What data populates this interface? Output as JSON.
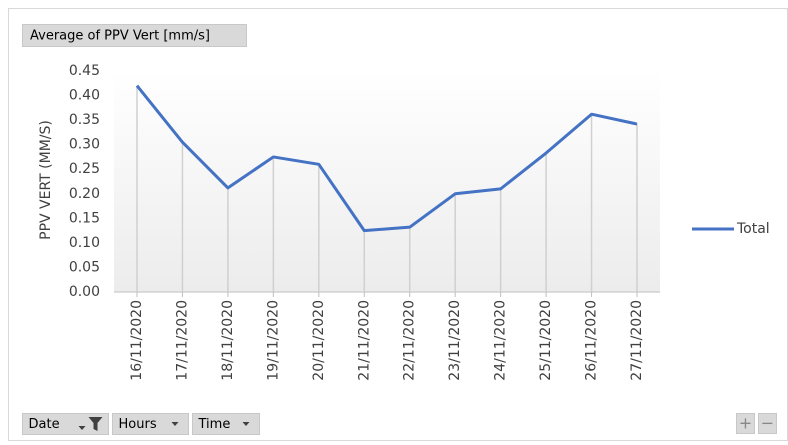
{
  "value_field": "Average of PPV Vert [mm/s]",
  "filter_fields": [
    "Date",
    "Hours",
    "Time"
  ],
  "chart_data": {
    "type": "line",
    "y_label": "PPV VERT (MM/S)",
    "categories": [
      "16/11/2020",
      "17/11/2020",
      "18/11/2020",
      "19/11/2020",
      "20/11/2020",
      "21/11/2020",
      "22/11/2020",
      "23/11/2020",
      "24/11/2020",
      "25/11/2020",
      "26/11/2020",
      "27/11/2020"
    ],
    "series": [
      {
        "name": "Total",
        "color": "#4472c4",
        "values": [
          0.42,
          0.305,
          0.212,
          0.275,
          0.26,
          0.125,
          0.132,
          0.2,
          0.21,
          0.283,
          0.362,
          0.342
        ]
      }
    ],
    "ylim": [
      0,
      0.45
    ],
    "yticks": [
      {
        "value": 0,
        "label": "0.00"
      },
      0.05,
      {
        "value": 0.1,
        "label": "0.10"
      },
      0.15,
      {
        "value": 0.2,
        "label": "0.20"
      },
      0.25,
      {
        "value": 0.3,
        "label": "0.30"
      },
      0.35,
      {
        "value": 0.4,
        "label": "0.40"
      },
      0.45
    ],
    "drop_lines": true,
    "legend": "right"
  }
}
